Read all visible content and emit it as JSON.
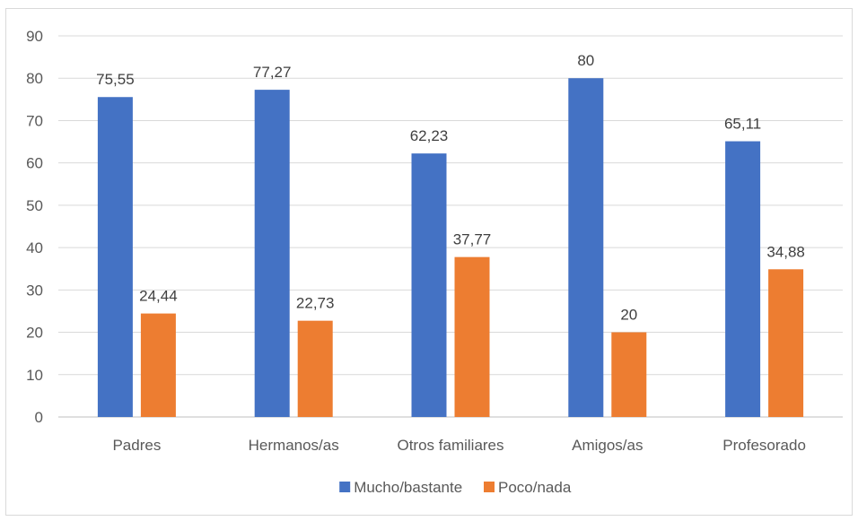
{
  "chart_data": {
    "type": "bar",
    "title": "",
    "xlabel": "",
    "ylabel": "",
    "categories": [
      "Padres",
      "Hermanos/as",
      "Otros familiares",
      "Amigos/as",
      "Profesorado"
    ],
    "series": [
      {
        "name": "Mucho/bastante",
        "color": "#4472c4",
        "values": [
          75.55,
          77.27,
          62.23,
          80,
          65.11
        ],
        "labels": [
          "75,55",
          "77,27",
          "62,23",
          "80",
          "65,11"
        ]
      },
      {
        "name": "Poco/nada",
        "color": "#ed7d31",
        "values": [
          24.44,
          22.73,
          37.77,
          20,
          34.88
        ],
        "labels": [
          "24,44",
          "22,73",
          "37,77",
          "20",
          "34,88"
        ]
      }
    ],
    "ylim": [
      0,
      90
    ],
    "yticks": [
      0,
      10,
      20,
      30,
      40,
      50,
      60,
      70,
      80,
      90
    ],
    "grid": true,
    "legend_position": "bottom"
  }
}
